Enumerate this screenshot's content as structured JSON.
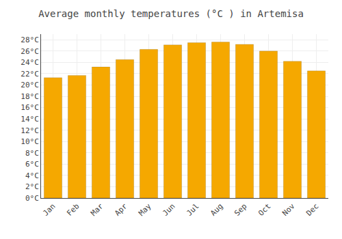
{
  "chart_data": {
    "type": "bar",
    "title": "Average monthly temperatures (°C ) in Artemisa",
    "categories": [
      "Jan",
      "Feb",
      "Mar",
      "Apr",
      "May",
      "Jun",
      "Jul",
      "Aug",
      "Sep",
      "Oct",
      "Nov",
      "Dec"
    ],
    "values": [
      21.3,
      21.7,
      23.2,
      24.5,
      26.3,
      27.1,
      27.5,
      27.6,
      27.2,
      26.0,
      24.2,
      22.5
    ],
    "color": "#F5A800",
    "ylim": [
      0,
      29
    ],
    "yticks": [
      {
        "value": 0,
        "label": "0°C"
      },
      {
        "value": 2,
        "label": "2°C"
      },
      {
        "value": 4,
        "label": "4°C"
      },
      {
        "value": 6,
        "label": "6°C"
      },
      {
        "value": 8,
        "label": "8°C"
      },
      {
        "value": 10,
        "label": "10°C"
      },
      {
        "value": 12,
        "label": "12°C"
      },
      {
        "value": 14,
        "label": "14°C"
      },
      {
        "value": 16,
        "label": "16°C"
      },
      {
        "value": 18,
        "label": "18°C"
      },
      {
        "value": 20,
        "label": "20°C"
      },
      {
        "value": 22,
        "label": "22°C"
      },
      {
        "value": 24,
        "label": "24°C"
      },
      {
        "value": 26,
        "label": "26°C"
      },
      {
        "value": 28,
        "label": "28°C"
      }
    ],
    "grid": true
  }
}
